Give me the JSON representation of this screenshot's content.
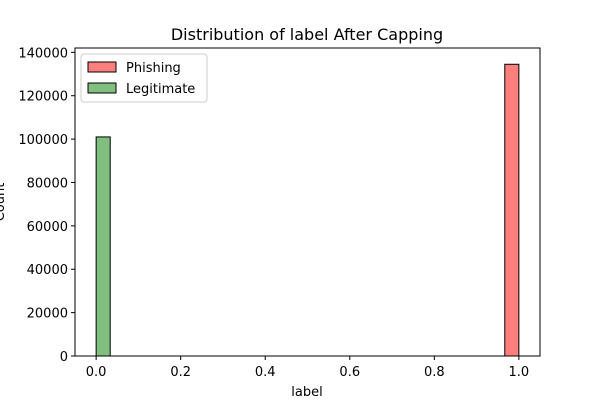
{
  "chart_data": {
    "type": "bar",
    "title": "Distribution of label After Capping",
    "xlabel": "label",
    "ylabel": "Count",
    "xlim": [
      -0.05,
      1.05
    ],
    "ylim": [
      0,
      142000
    ],
    "x_ticks": [
      0.0,
      0.2,
      0.4,
      0.6,
      0.8,
      1.0
    ],
    "x_tick_labels": [
      "0.0",
      "0.2",
      "0.4",
      "0.6",
      "0.8",
      "1.0"
    ],
    "y_ticks": [
      0,
      20000,
      40000,
      60000,
      80000,
      100000,
      120000,
      140000
    ],
    "y_tick_labels": [
      "0",
      "20000",
      "40000",
      "60000",
      "80000",
      "100000",
      "120000",
      "140000"
    ],
    "grid": false,
    "legend_position": "top-left",
    "series": [
      {
        "name": "Phishing",
        "color": "#ff7f7f",
        "bins": [
          {
            "start": 0.9667,
            "end": 1.0,
            "value": 134500
          }
        ]
      },
      {
        "name": "Legitimate",
        "color": "#80bf80",
        "bins": [
          {
            "start": 0.0,
            "end": 0.0333,
            "value": 101000
          }
        ]
      }
    ]
  }
}
